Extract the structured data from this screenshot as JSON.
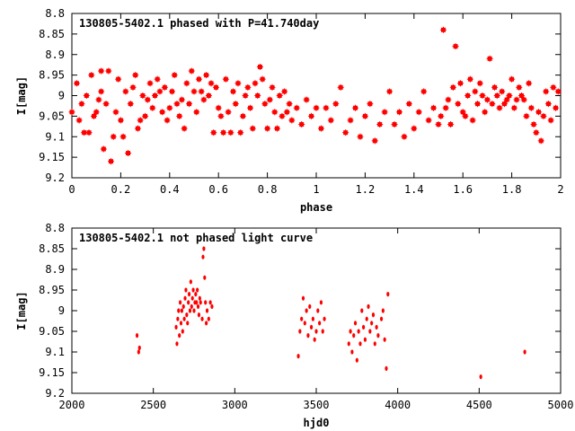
{
  "chart_data": [
    {
      "type": "scatter",
      "title": "130805-5402.1 phased with P=41.740day",
      "xlabel": "phase",
      "ylabel": "I[mag]",
      "xlim": [
        0,
        2
      ],
      "ylim": [
        9.2,
        8.8
      ],
      "y_inverted": true,
      "xticks": [
        "0",
        "0.2",
        "0.4",
        "0.6",
        "0.8",
        "1",
        "1.2",
        "1.4",
        "1.6",
        "1.8",
        "2"
      ],
      "yticks": [
        "8.8",
        "8.85",
        "8.9",
        "8.95",
        "9",
        "9.05",
        "9.1",
        "9.15",
        "9.2"
      ],
      "marker_color": "#ff0000",
      "grid": false,
      "x": [
        0.0,
        0.02,
        0.03,
        0.04,
        0.05,
        0.06,
        0.07,
        0.08,
        0.09,
        0.1,
        0.11,
        0.12,
        0.12,
        0.13,
        0.14,
        0.15,
        0.16,
        0.17,
        0.18,
        0.19,
        0.2,
        0.21,
        0.22,
        0.23,
        0.24,
        0.25,
        0.26,
        0.27,
        0.28,
        0.29,
        0.3,
        0.31,
        0.32,
        0.33,
        0.34,
        0.35,
        0.36,
        0.37,
        0.38,
        0.39,
        0.4,
        0.41,
        0.42,
        0.43,
        0.44,
        0.45,
        0.46,
        0.47,
        0.48,
        0.49,
        0.5,
        0.51,
        0.52,
        0.53,
        0.54,
        0.55,
        0.56,
        0.57,
        0.58,
        0.59,
        0.6,
        0.61,
        0.62,
        0.63,
        0.64,
        0.65,
        0.66,
        0.67,
        0.68,
        0.69,
        0.7,
        0.71,
        0.72,
        0.73,
        0.74,
        0.75,
        0.76,
        0.77,
        0.78,
        0.79,
        0.8,
        0.81,
        0.82,
        0.83,
        0.84,
        0.85,
        0.86,
        0.87,
        0.88,
        0.89,
        0.9,
        0.92,
        0.94,
        0.96,
        0.98,
        1.0,
        1.02,
        1.04,
        1.06,
        1.08,
        1.1,
        1.12,
        1.14,
        1.16,
        1.18,
        1.2,
        1.22,
        1.24,
        1.26,
        1.28,
        1.3,
        1.32,
        1.34,
        1.36,
        1.38,
        1.4,
        1.42,
        1.44,
        1.46,
        1.48,
        1.5,
        1.51,
        1.52,
        1.53,
        1.54,
        1.55,
        1.56,
        1.57,
        1.58,
        1.59,
        1.6,
        1.61,
        1.62,
        1.63,
        1.64,
        1.65,
        1.66,
        1.67,
        1.68,
        1.69,
        1.7,
        1.71,
        1.72,
        1.73,
        1.74,
        1.75,
        1.76,
        1.77,
        1.78,
        1.79,
        1.8,
        1.81,
        1.82,
        1.83,
        1.84,
        1.85,
        1.86,
        1.87,
        1.88,
        1.89,
        1.9,
        1.91,
        1.92,
        1.93,
        1.94,
        1.95,
        1.96,
        1.97,
        1.98,
        1.99
      ],
      "y": [
        9.04,
        8.97,
        9.06,
        9.02,
        9.09,
        9.0,
        9.09,
        8.95,
        9.05,
        9.04,
        9.01,
        8.99,
        8.94,
        9.13,
        9.02,
        8.94,
        9.16,
        9.1,
        9.04,
        8.96,
        9.06,
        9.1,
        8.99,
        9.14,
        9.02,
        8.98,
        8.95,
        9.08,
        9.06,
        9.0,
        9.05,
        9.01,
        8.97,
        9.03,
        9.0,
        8.96,
        8.99,
        9.04,
        8.98,
        9.06,
        9.03,
        8.99,
        8.95,
        9.02,
        9.05,
        9.01,
        9.08,
        8.97,
        9.02,
        8.94,
        8.99,
        9.04,
        8.96,
        8.99,
        9.01,
        8.95,
        9.0,
        8.97,
        9.09,
        8.98,
        9.03,
        9.05,
        9.09,
        8.96,
        9.04,
        9.09,
        8.99,
        9.02,
        8.97,
        9.09,
        9.05,
        9.0,
        8.98,
        9.03,
        9.08,
        8.97,
        9.0,
        8.93,
        8.96,
        9.02,
        9.08,
        9.01,
        8.98,
        9.04,
        9.08,
        9.0,
        9.05,
        8.99,
        9.04,
        9.02,
        9.06,
        9.03,
        9.07,
        9.01,
        9.05,
        9.03,
        9.08,
        9.03,
        9.06,
        9.02,
        8.98,
        9.09,
        9.06,
        9.03,
        9.1,
        9.05,
        9.02,
        9.11,
        9.07,
        9.04,
        8.99,
        9.07,
        9.04,
        9.1,
        9.02,
        9.08,
        9.04,
        8.99,
        9.06,
        9.03,
        9.07,
        9.05,
        8.84,
        9.03,
        9.01,
        9.07,
        8.98,
        8.88,
        9.02,
        8.97,
        9.04,
        9.05,
        9.0,
        8.96,
        9.06,
        8.99,
        9.02,
        8.97,
        9.0,
        9.04,
        9.01,
        8.91,
        9.02,
        8.98,
        9.0,
        9.03,
        8.99,
        9.02,
        9.01,
        9.0,
        8.96,
        9.03,
        9.01,
        8.98,
        9.0,
        9.01,
        9.05,
        8.97,
        9.03,
        9.07,
        9.09,
        9.04,
        9.11,
        9.05,
        8.99,
        9.02,
        9.06,
        8.98,
        9.03,
        8.99
      ]
    },
    {
      "type": "scatter",
      "title": "130805-5402.1 not phased light curve",
      "xlabel": "hjd0",
      "ylabel": "I[mag]",
      "xlim": [
        2000,
        5000
      ],
      "ylim": [
        9.2,
        8.8
      ],
      "y_inverted": true,
      "xticks": [
        "2000",
        "2500",
        "3000",
        "3500",
        "4000",
        "4500",
        "5000"
      ],
      "yticks": [
        "8.8",
        "8.85",
        "8.9",
        "8.95",
        "9",
        "9.05",
        "9.1",
        "9.15",
        "9.2"
      ],
      "marker_color": "#ff0000",
      "grid": false,
      "x": [
        2400,
        2410,
        2415,
        2640,
        2645,
        2650,
        2655,
        2660,
        2665,
        2670,
        2675,
        2680,
        2685,
        2690,
        2695,
        2700,
        2705,
        2710,
        2715,
        2720,
        2725,
        2730,
        2735,
        2740,
        2745,
        2750,
        2755,
        2760,
        2765,
        2770,
        2775,
        2780,
        2785,
        2790,
        2800,
        2805,
        2810,
        2815,
        2820,
        2825,
        2830,
        2840,
        2850,
        2860,
        3390,
        3400,
        3410,
        3420,
        3430,
        3440,
        3450,
        3460,
        3470,
        3480,
        3490,
        3500,
        3510,
        3520,
        3530,
        3540,
        3550,
        3700,
        3710,
        3720,
        3730,
        3740,
        3750,
        3760,
        3770,
        3780,
        3790,
        3800,
        3810,
        3820,
        3830,
        3840,
        3850,
        3860,
        3870,
        3880,
        3900,
        3910,
        3920,
        3930,
        3940,
        4510,
        4780
      ],
      "y": [
        9.06,
        9.1,
        9.09,
        9.04,
        9.08,
        9.02,
        9.0,
        9.06,
        8.98,
        9.03,
        9.0,
        9.05,
        8.99,
        9.02,
        8.97,
        8.95,
        9.01,
        9.03,
        8.98,
        8.96,
        9.0,
        8.93,
        8.99,
        8.97,
        8.95,
        9.0,
        8.98,
        8.96,
        8.98,
        8.95,
        8.99,
        9.01,
        8.97,
        8.98,
        9.02,
        8.87,
        8.85,
        8.92,
        8.98,
        9.03,
        9.0,
        9.02,
        8.98,
        8.99,
        9.11,
        9.05,
        9.02,
        8.97,
        9.03,
        9.0,
        9.06,
        8.99,
        9.04,
        9.02,
        9.07,
        9.05,
        9.0,
        9.03,
        8.98,
        9.05,
        9.02,
        9.08,
        9.05,
        9.1,
        9.06,
        9.03,
        9.12,
        9.05,
        9.08,
        9.0,
        9.04,
        9.07,
        9.02,
        8.99,
        9.05,
        9.03,
        9.01,
        9.08,
        9.04,
        9.06,
        9.02,
        9.0,
        9.07,
        9.14,
        8.96,
        9.16,
        9.1
      ]
    }
  ]
}
